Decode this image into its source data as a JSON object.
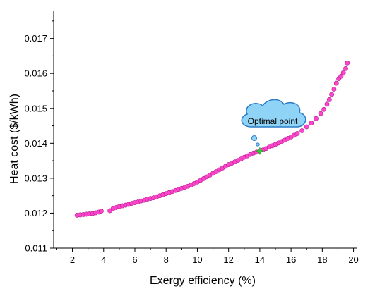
{
  "chart_data": {
    "type": "scatter",
    "title": "",
    "xlabel": "Exergy efficiency (%)",
    "ylabel": "Heat cost ($/kWh)",
    "xlim": [
      0.8,
      20.2
    ],
    "ylim": [
      0.011,
      0.0178
    ],
    "xticks": [
      2,
      4,
      6,
      8,
      10,
      12,
      14,
      16,
      18,
      20
    ],
    "yticks": [
      0.011,
      0.012,
      0.013,
      0.014,
      0.015,
      0.016,
      0.017
    ],
    "xtick_labels": [
      "2",
      "4",
      "6",
      "8",
      "10",
      "12",
      "14",
      "16",
      "18",
      "20"
    ],
    "ytick_labels": [
      "0.011",
      "0.012",
      "0.013",
      "0.014",
      "0.015",
      "0.016",
      "0.017"
    ],
    "grid": false,
    "marker_color": "#ff44cc",
    "marker_edge": "#b0208e",
    "series": [
      {
        "values": [
          [
            2.3,
            0.01194
          ],
          [
            2.5,
            0.01195
          ],
          [
            2.7,
            0.01196
          ],
          [
            2.9,
            0.01197
          ],
          [
            3.1,
            0.01198
          ],
          [
            3.3,
            0.01199
          ],
          [
            3.5,
            0.01201
          ],
          [
            3.7,
            0.01203
          ],
          [
            3.85,
            0.01206
          ],
          [
            4.4,
            0.01207
          ],
          [
            4.6,
            0.01213
          ],
          [
            4.8,
            0.01216
          ],
          [
            5.0,
            0.01219
          ],
          [
            5.2,
            0.01221
          ],
          [
            5.4,
            0.01223
          ],
          [
            5.6,
            0.01225
          ],
          [
            5.8,
            0.01228
          ],
          [
            6.0,
            0.0123
          ],
          [
            6.2,
            0.01232
          ],
          [
            6.4,
            0.01235
          ],
          [
            6.6,
            0.01237
          ],
          [
            6.8,
            0.0124
          ],
          [
            7.0,
            0.01242
          ],
          [
            7.2,
            0.01244
          ],
          [
            7.4,
            0.01247
          ],
          [
            7.6,
            0.0125
          ],
          [
            7.8,
            0.01253
          ],
          [
            8.0,
            0.01256
          ],
          [
            8.2,
            0.01259
          ],
          [
            8.4,
            0.01262
          ],
          [
            8.6,
            0.01265
          ],
          [
            8.8,
            0.01268
          ],
          [
            9.0,
            0.01271
          ],
          [
            9.2,
            0.01274
          ],
          [
            9.4,
            0.01277
          ],
          [
            9.6,
            0.01281
          ],
          [
            9.8,
            0.01285
          ],
          [
            10.0,
            0.01289
          ],
          [
            10.2,
            0.01294
          ],
          [
            10.4,
            0.01299
          ],
          [
            10.6,
            0.01304
          ],
          [
            10.8,
            0.01309
          ],
          [
            11.0,
            0.01314
          ],
          [
            11.2,
            0.01319
          ],
          [
            11.4,
            0.01324
          ],
          [
            11.6,
            0.01329
          ],
          [
            11.8,
            0.01334
          ],
          [
            12.0,
            0.01339
          ],
          [
            12.2,
            0.01343
          ],
          [
            12.4,
            0.01347
          ],
          [
            12.6,
            0.01351
          ],
          [
            12.8,
            0.01355
          ],
          [
            13.0,
            0.0136
          ],
          [
            13.2,
            0.01364
          ],
          [
            13.4,
            0.01368
          ],
          [
            13.6,
            0.01372
          ],
          [
            13.8,
            0.01375
          ],
          [
            14.2,
            0.01381
          ],
          [
            14.4,
            0.01385
          ],
          [
            14.6,
            0.01389
          ],
          [
            14.8,
            0.01393
          ],
          [
            15.0,
            0.01397
          ],
          [
            15.2,
            0.01401
          ],
          [
            15.4,
            0.01405
          ],
          [
            15.6,
            0.01409
          ],
          [
            15.8,
            0.01414
          ],
          [
            16.0,
            0.01418
          ],
          [
            16.2,
            0.01423
          ],
          [
            16.4,
            0.01428
          ],
          [
            16.7,
            0.01436
          ],
          [
            17.0,
            0.01447
          ],
          [
            17.3,
            0.01458
          ],
          [
            17.6,
            0.01471
          ],
          [
            17.9,
            0.01485
          ],
          [
            18.1,
            0.01497
          ],
          [
            18.3,
            0.01512
          ],
          [
            18.45,
            0.01525
          ],
          [
            18.6,
            0.0154
          ],
          [
            18.75,
            0.01555
          ],
          [
            18.9,
            0.01572
          ],
          [
            19.05,
            0.01585
          ],
          [
            19.2,
            0.01592
          ],
          [
            19.35,
            0.01602
          ],
          [
            19.5,
            0.01614
          ],
          [
            19.6,
            0.0163
          ]
        ]
      }
    ],
    "optimal_point": {
      "label": "Optimal point",
      "x": 14.0,
      "y": 0.01378,
      "color": "#33cc33"
    }
  }
}
